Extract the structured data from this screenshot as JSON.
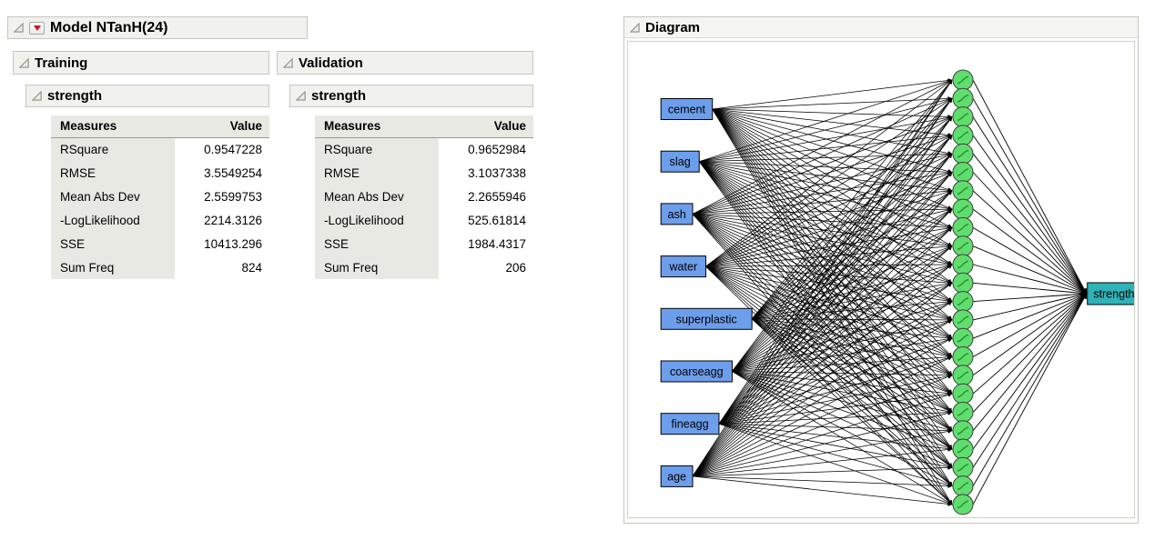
{
  "model": {
    "title": "Model NTanH(24)"
  },
  "panels": {
    "training": {
      "title": "Training",
      "section_title": "strength",
      "table": {
        "headers": [
          "Measures",
          "Value"
        ],
        "rows": [
          {
            "measure": "RSquare",
            "value": "0.9547228"
          },
          {
            "measure": "RMSE",
            "value": "3.5549254"
          },
          {
            "measure": "Mean Abs Dev",
            "value": "2.5599753"
          },
          {
            "measure": "-LogLikelihood",
            "value": "2214.3126"
          },
          {
            "measure": "SSE",
            "value": "10413.296"
          },
          {
            "measure": "Sum Freq",
            "value": "824"
          }
        ]
      }
    },
    "validation": {
      "title": "Validation",
      "section_title": "strength",
      "table": {
        "headers": [
          "Measures",
          "Value"
        ],
        "rows": [
          {
            "measure": "RSquare",
            "value": "0.9652984"
          },
          {
            "measure": "RMSE",
            "value": "3.1037338"
          },
          {
            "measure": "Mean Abs Dev",
            "value": "2.2655946"
          },
          {
            "measure": "-LogLikelihood",
            "value": "525.61814"
          },
          {
            "measure": "SSE",
            "value": "1984.4317"
          },
          {
            "measure": "Sum Freq",
            "value": "206"
          }
        ]
      }
    }
  },
  "diagram": {
    "title": "Diagram",
    "inputs": [
      "cement",
      "slag",
      "ash",
      "water",
      "superplastic",
      "coarseagg",
      "fineagg",
      "age"
    ],
    "hidden_count": 24,
    "hidden_activation": "tanh",
    "output": "strength",
    "colors": {
      "input_fill": "#6D9EEB",
      "hidden_fill": "#5FDE6E",
      "output_fill": "#2FB3B8",
      "line": "#000000"
    }
  },
  "icons": {
    "disclosure": "open-disclosure-triangle",
    "model_menu": "red-dropdown-triangle"
  }
}
